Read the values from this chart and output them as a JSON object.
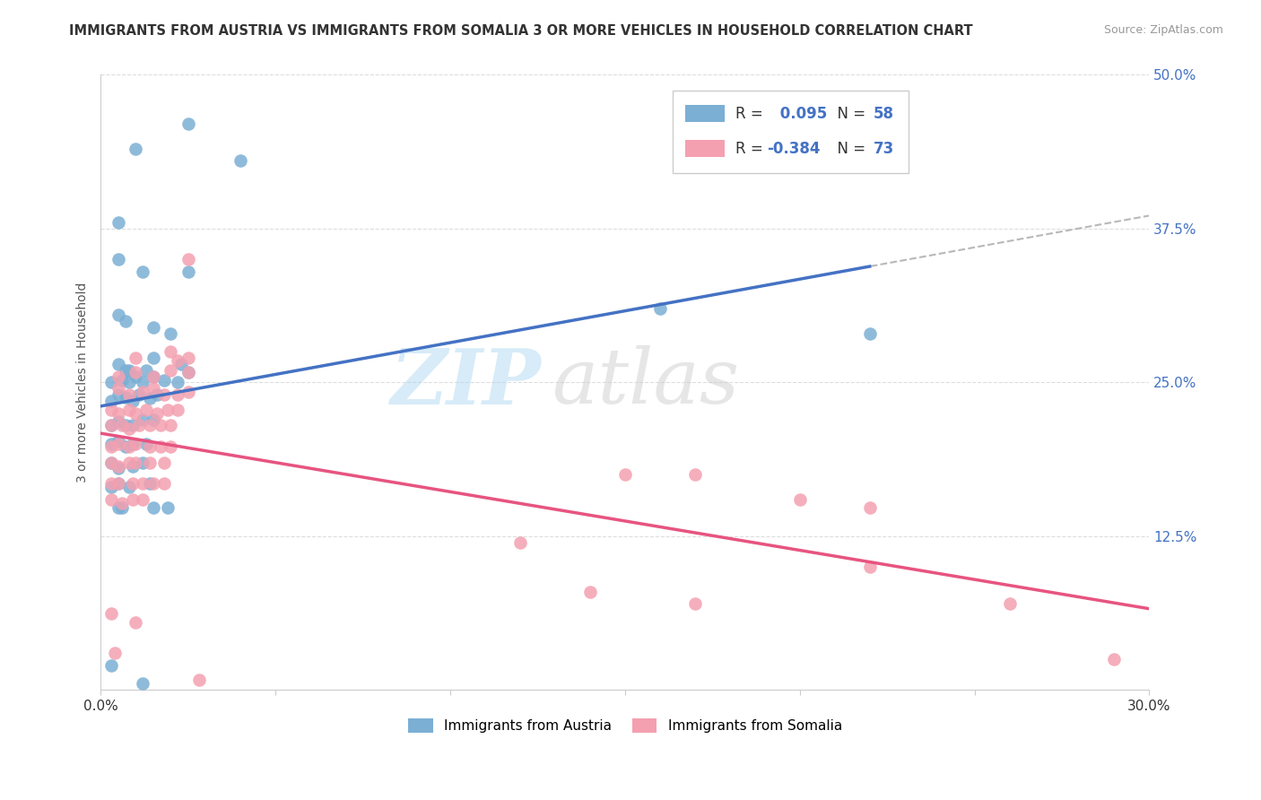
{
  "title": "IMMIGRANTS FROM AUSTRIA VS IMMIGRANTS FROM SOMALIA 3 OR MORE VEHICLES IN HOUSEHOLD CORRELATION CHART",
  "source": "Source: ZipAtlas.com",
  "ylabel": "3 or more Vehicles in Household",
  "xlim": [
    0.0,
    0.3
  ],
  "ylim": [
    0.0,
    0.5
  ],
  "xticks": [
    0.0,
    0.05,
    0.1,
    0.15,
    0.2,
    0.25,
    0.3
  ],
  "xticklabels": [
    "0.0%",
    "",
    "",
    "",
    "",
    "",
    "30.0%"
  ],
  "yticks": [
    0.0,
    0.125,
    0.25,
    0.375,
    0.5
  ],
  "yticklabels": [
    "",
    "12.5%",
    "25.0%",
    "37.5%",
    "50.0%"
  ],
  "austria_color": "#7bafd4",
  "somalia_color": "#f4a0b0",
  "austria_R": 0.095,
  "austria_N": 58,
  "somalia_R": -0.384,
  "somalia_N": 73,
  "austria_line_color": "#4472c4",
  "somalia_line_color": "#e75480",
  "trend_line_color": "#b8b8b8",
  "austria_scatter": [
    [
      0.01,
      0.44
    ],
    [
      0.025,
      0.46
    ],
    [
      0.04,
      0.43
    ],
    [
      0.005,
      0.38
    ],
    [
      0.005,
      0.35
    ],
    [
      0.012,
      0.34
    ],
    [
      0.025,
      0.34
    ],
    [
      0.005,
      0.305
    ],
    [
      0.007,
      0.3
    ],
    [
      0.015,
      0.295
    ],
    [
      0.02,
      0.29
    ],
    [
      0.005,
      0.265
    ],
    [
      0.007,
      0.26
    ],
    [
      0.008,
      0.26
    ],
    [
      0.013,
      0.26
    ],
    [
      0.015,
      0.27
    ],
    [
      0.023,
      0.265
    ],
    [
      0.003,
      0.25
    ],
    [
      0.006,
      0.252
    ],
    [
      0.008,
      0.25
    ],
    [
      0.01,
      0.255
    ],
    [
      0.012,
      0.25
    ],
    [
      0.015,
      0.255
    ],
    [
      0.018,
      0.252
    ],
    [
      0.022,
      0.25
    ],
    [
      0.025,
      0.258
    ],
    [
      0.003,
      0.235
    ],
    [
      0.005,
      0.24
    ],
    [
      0.007,
      0.238
    ],
    [
      0.009,
      0.235
    ],
    [
      0.011,
      0.24
    ],
    [
      0.014,
      0.237
    ],
    [
      0.016,
      0.24
    ],
    [
      0.003,
      0.215
    ],
    [
      0.005,
      0.218
    ],
    [
      0.007,
      0.215
    ],
    [
      0.009,
      0.215
    ],
    [
      0.012,
      0.22
    ],
    [
      0.015,
      0.22
    ],
    [
      0.003,
      0.2
    ],
    [
      0.005,
      0.202
    ],
    [
      0.007,
      0.198
    ],
    [
      0.009,
      0.2
    ],
    [
      0.013,
      0.2
    ],
    [
      0.003,
      0.185
    ],
    [
      0.005,
      0.18
    ],
    [
      0.009,
      0.182
    ],
    [
      0.012,
      0.185
    ],
    [
      0.003,
      0.165
    ],
    [
      0.005,
      0.168
    ],
    [
      0.008,
      0.165
    ],
    [
      0.014,
      0.168
    ],
    [
      0.16,
      0.31
    ],
    [
      0.22,
      0.29
    ],
    [
      0.005,
      0.148
    ],
    [
      0.006,
      0.148
    ],
    [
      0.015,
      0.148
    ],
    [
      0.019,
      0.148
    ],
    [
      0.003,
      0.02
    ],
    [
      0.012,
      0.005
    ]
  ],
  "somalia_scatter": [
    [
      0.025,
      0.35
    ],
    [
      0.01,
      0.27
    ],
    [
      0.02,
      0.275
    ],
    [
      0.025,
      0.27
    ],
    [
      0.022,
      0.268
    ],
    [
      0.005,
      0.255
    ],
    [
      0.01,
      0.258
    ],
    [
      0.015,
      0.255
    ],
    [
      0.02,
      0.26
    ],
    [
      0.025,
      0.258
    ],
    [
      0.005,
      0.245
    ],
    [
      0.008,
      0.24
    ],
    [
      0.012,
      0.242
    ],
    [
      0.015,
      0.245
    ],
    [
      0.018,
      0.24
    ],
    [
      0.022,
      0.24
    ],
    [
      0.025,
      0.242
    ],
    [
      0.003,
      0.228
    ],
    [
      0.005,
      0.225
    ],
    [
      0.008,
      0.228
    ],
    [
      0.01,
      0.225
    ],
    [
      0.013,
      0.228
    ],
    [
      0.016,
      0.225
    ],
    [
      0.019,
      0.228
    ],
    [
      0.022,
      0.228
    ],
    [
      0.003,
      0.215
    ],
    [
      0.006,
      0.215
    ],
    [
      0.008,
      0.212
    ],
    [
      0.011,
      0.215
    ],
    [
      0.014,
      0.215
    ],
    [
      0.017,
      0.215
    ],
    [
      0.02,
      0.215
    ],
    [
      0.003,
      0.198
    ],
    [
      0.005,
      0.2
    ],
    [
      0.008,
      0.198
    ],
    [
      0.01,
      0.2
    ],
    [
      0.014,
      0.198
    ],
    [
      0.017,
      0.198
    ],
    [
      0.02,
      0.198
    ],
    [
      0.003,
      0.185
    ],
    [
      0.005,
      0.182
    ],
    [
      0.008,
      0.185
    ],
    [
      0.01,
      0.185
    ],
    [
      0.014,
      0.185
    ],
    [
      0.018,
      0.185
    ],
    [
      0.003,
      0.168
    ],
    [
      0.005,
      0.168
    ],
    [
      0.009,
      0.168
    ],
    [
      0.012,
      0.168
    ],
    [
      0.015,
      0.168
    ],
    [
      0.018,
      0.168
    ],
    [
      0.003,
      0.155
    ],
    [
      0.006,
      0.152
    ],
    [
      0.009,
      0.155
    ],
    [
      0.012,
      0.155
    ],
    [
      0.15,
      0.175
    ],
    [
      0.17,
      0.175
    ],
    [
      0.2,
      0.155
    ],
    [
      0.22,
      0.148
    ],
    [
      0.12,
      0.12
    ],
    [
      0.22,
      0.1
    ],
    [
      0.003,
      0.062
    ],
    [
      0.01,
      0.055
    ],
    [
      0.14,
      0.08
    ],
    [
      0.17,
      0.07
    ],
    [
      0.26,
      0.07
    ],
    [
      0.29,
      0.025
    ],
    [
      0.004,
      0.03
    ],
    [
      0.028,
      0.008
    ]
  ],
  "watermark_zip": "ZIP",
  "watermark_atlas": "atlas",
  "background_color": "#ffffff",
  "grid_color": "#dddddd",
  "austria_trend_cutoff": 0.22
}
